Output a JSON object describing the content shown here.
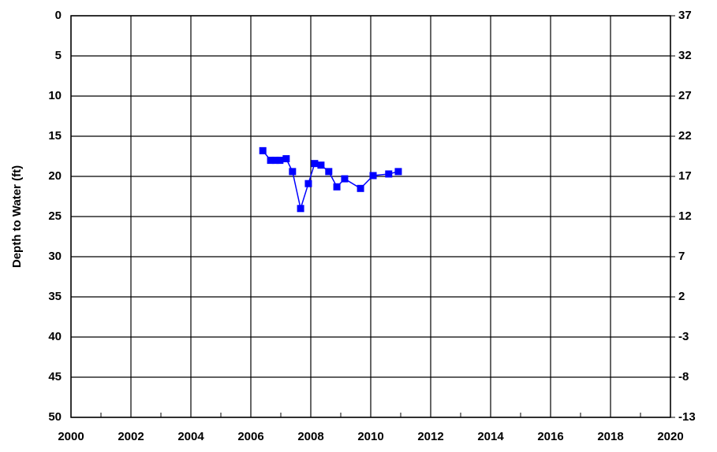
{
  "chart_data": {
    "type": "line",
    "ylabel": "Depth to Water (ft)",
    "x": [
      2006.4,
      2006.66,
      2006.82,
      2006.97,
      2007.18,
      2007.39,
      2007.66,
      2007.92,
      2008.13,
      2008.34,
      2008.6,
      2008.87,
      2009.13,
      2009.66,
      2010.08,
      2010.6,
      2010.92
    ],
    "series": [
      {
        "name": "Depth to Water",
        "color": "#0000ff",
        "values": [
          16.8,
          18.0,
          18.0,
          18.0,
          17.8,
          19.4,
          24.0,
          20.9,
          18.4,
          18.6,
          19.4,
          21.3,
          20.3,
          21.5,
          19.9,
          19.7,
          19.4
        ]
      }
    ],
    "xlim": [
      2000,
      2020
    ],
    "xticks": [
      2000,
      2002,
      2004,
      2006,
      2008,
      2010,
      2012,
      2014,
      2016,
      2018,
      2020
    ],
    "xminorticks": [
      2001,
      2003,
      2005,
      2007,
      2009,
      2011,
      2013,
      2015,
      2017,
      2019
    ],
    "ylim": [
      0,
      50
    ],
    "invert_y": true,
    "yticks": [
      0,
      5,
      10,
      15,
      20,
      25,
      30,
      35,
      40,
      45,
      50
    ],
    "y2lim": [
      37,
      -13
    ],
    "y2ticks": [
      37,
      32,
      27,
      22,
      17,
      12,
      7,
      2,
      -3,
      -8,
      -13
    ],
    "grid": true
  }
}
